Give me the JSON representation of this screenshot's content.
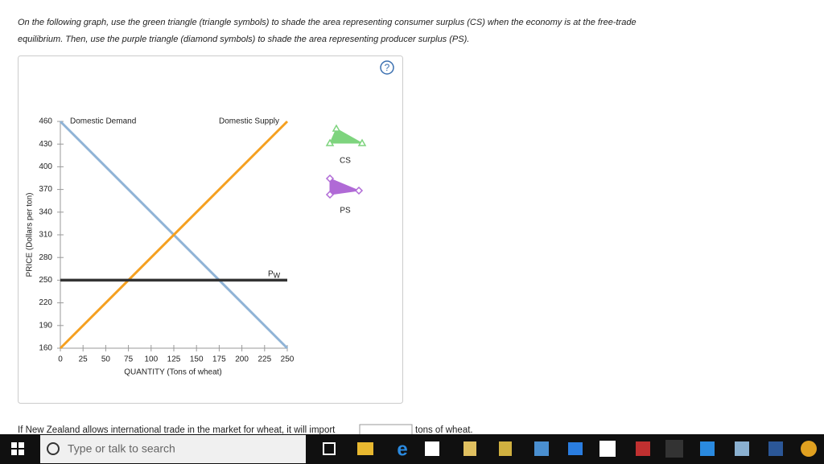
{
  "instructions": "On the following graph, use the green triangle (triangle symbols) to shade the area representing consumer surplus (CS) when the economy is at the free-trade equilibrium. Then, use the purple triangle (diamond symbols) to shade the area representing producer surplus (PS).",
  "help": "?",
  "chart_data": {
    "type": "line",
    "xlabel": "QUANTITY (Tons of wheat)",
    "ylabel": "PRICE (Dollars per ton)",
    "xlim": [
      0,
      250
    ],
    "ylim": [
      160,
      460
    ],
    "xticks": [
      0,
      25,
      50,
      75,
      100,
      125,
      150,
      175,
      200,
      225,
      250
    ],
    "yticks": [
      160,
      190,
      220,
      250,
      280,
      310,
      340,
      370,
      400,
      430,
      460
    ],
    "series": [
      {
        "name": "Domestic Demand",
        "color": "#8fb3d6",
        "x": [
          0,
          250
        ],
        "values": [
          460,
          160
        ]
      },
      {
        "name": "Domestic Supply",
        "color": "#f5a020",
        "x": [
          0,
          250
        ],
        "values": [
          160,
          460
        ]
      },
      {
        "name": "P",
        "subscript": "W",
        "color": "#333333",
        "x": [
          0,
          250
        ],
        "values": [
          250,
          250
        ]
      }
    ]
  },
  "tools": [
    {
      "label": "CS",
      "color": "#7ed47e",
      "shape": "triangle"
    },
    {
      "label": "PS",
      "color": "#b06ad6",
      "shape": "diamond"
    }
  ],
  "question": {
    "before": "If New Zealand allows international trade in the market for wheat, it will import",
    "after": "tons of wheat."
  },
  "taskbar": {
    "search": "Type or talk to search"
  }
}
